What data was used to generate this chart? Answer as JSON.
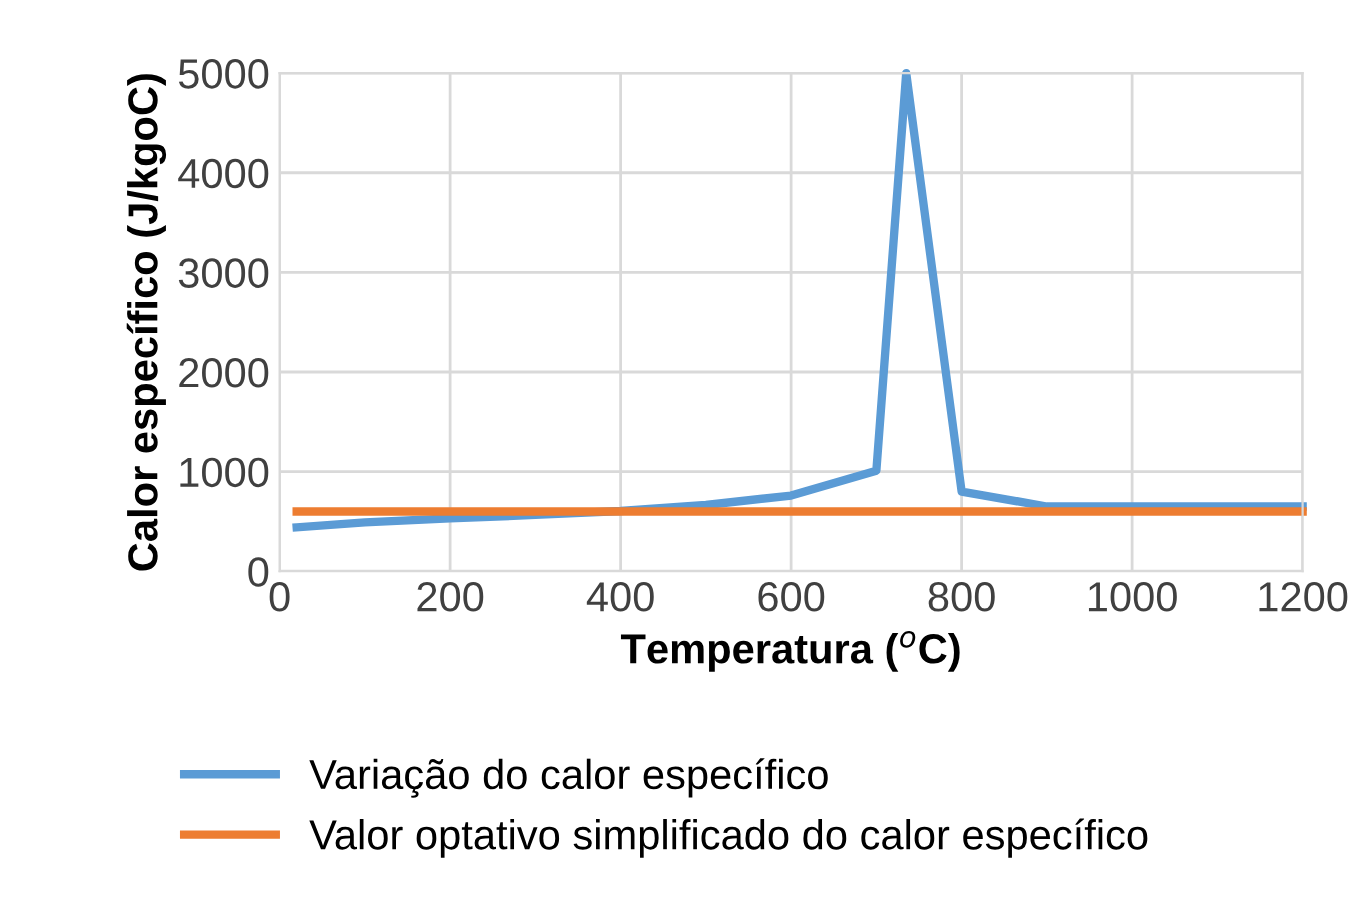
{
  "chart_data": {
    "type": "line",
    "xlabel": "Temperatura ($^{o}$C)",
    "ylabel": "Calor específico (J/kgoC)",
    "xlim": [
      0,
      1200
    ],
    "xticks": [
      0,
      200,
      400,
      600,
      800,
      1000,
      1200
    ],
    "ylim": [
      0,
      5000
    ],
    "yticks": [
      0,
      1000,
      2000,
      3000,
      4000,
      5000
    ],
    "grid": true,
    "legend": "bottom",
    "line_style": "solid",
    "marker": "none",
    "series": [
      {
        "name": "Variação do calor específico",
        "color": "#5b9bd5",
        "x": [
          20,
          100,
          200,
          300,
          400,
          500,
          600,
          700,
          735,
          800,
          900,
          1000,
          1100,
          1200
        ],
        "values": [
          440,
          490,
          530,
          565,
          605,
          665,
          760,
          1010,
          5000,
          800,
          650,
          650,
          650,
          650
        ]
      },
      {
        "name": "Valor optativo simplificado do calor específico",
        "color": "#ed7d31",
        "x": [
          20,
          1200
        ],
        "values": [
          600,
          600
        ]
      }
    ]
  }
}
